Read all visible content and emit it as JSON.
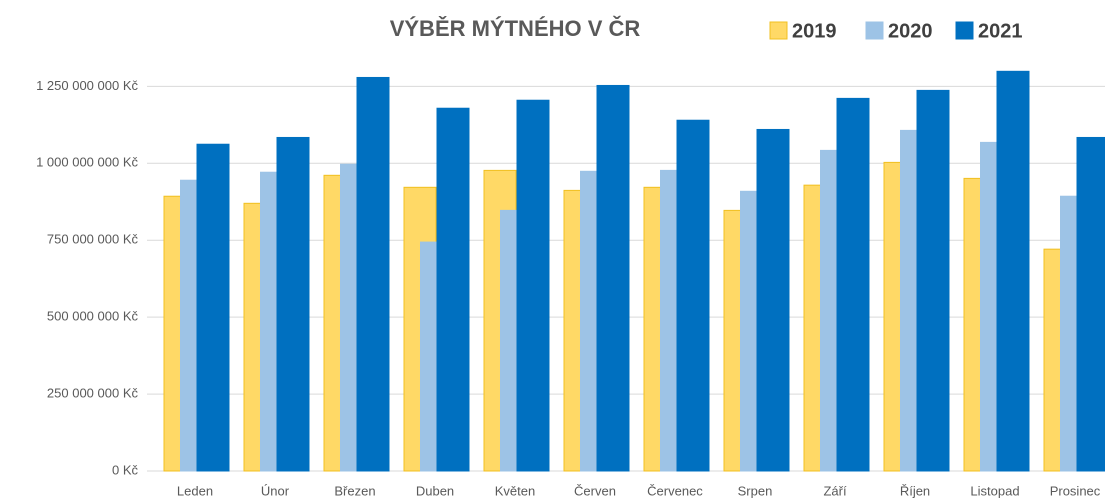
{
  "chart_data": {
    "type": "bar",
    "title": "VÝBĚR MÝTNÉHO V ČR",
    "categories": [
      "Leden",
      "Únor",
      "Březen",
      "Duben",
      "Květen",
      "Červen",
      "Červenec",
      "Srpen",
      "Září",
      "Říjen",
      "Listopad",
      "Prosinec"
    ],
    "series": [
      {
        "name": "2019",
        "color": "#ffd966",
        "values": [
          893000000,
          870000000,
          961000000,
          922000000,
          977000000,
          912000000,
          922000000,
          847000000,
          929000000,
          1003000000,
          951000000,
          721000000
        ]
      },
      {
        "name": "2020",
        "color": "#9dc3e6",
        "values": [
          945000000,
          971000000,
          997000000,
          744000000,
          847000000,
          974000000,
          977000000,
          909000000,
          1042000000,
          1107000000,
          1068000000,
          893000000
        ]
      },
      {
        "name": "2021",
        "color": "#0070c0",
        "values": [
          1062000000,
          1084000000,
          1279000000,
          1179000000,
          1205000000,
          1253000000,
          1140000000,
          1110000000,
          1211000000,
          1237000000,
          1299000000,
          1084000000
        ]
      }
    ],
    "ylim": [
      0,
      1300000000
    ],
    "yticks": [
      {
        "value": 0,
        "label": "0 Kč"
      },
      {
        "value": 250000000,
        "label": "250 000 000 Kč"
      },
      {
        "value": 500000000,
        "label": "500 000 000 Kč"
      },
      {
        "value": 750000000,
        "label": "750 000 000 Kč"
      },
      {
        "value": 1000000000,
        "label": "1 000 000 000 Kč"
      },
      {
        "value": 1250000000,
        "label": "1 250 000 000 Kč"
      }
    ],
    "grid": true,
    "legend": "top-right"
  }
}
